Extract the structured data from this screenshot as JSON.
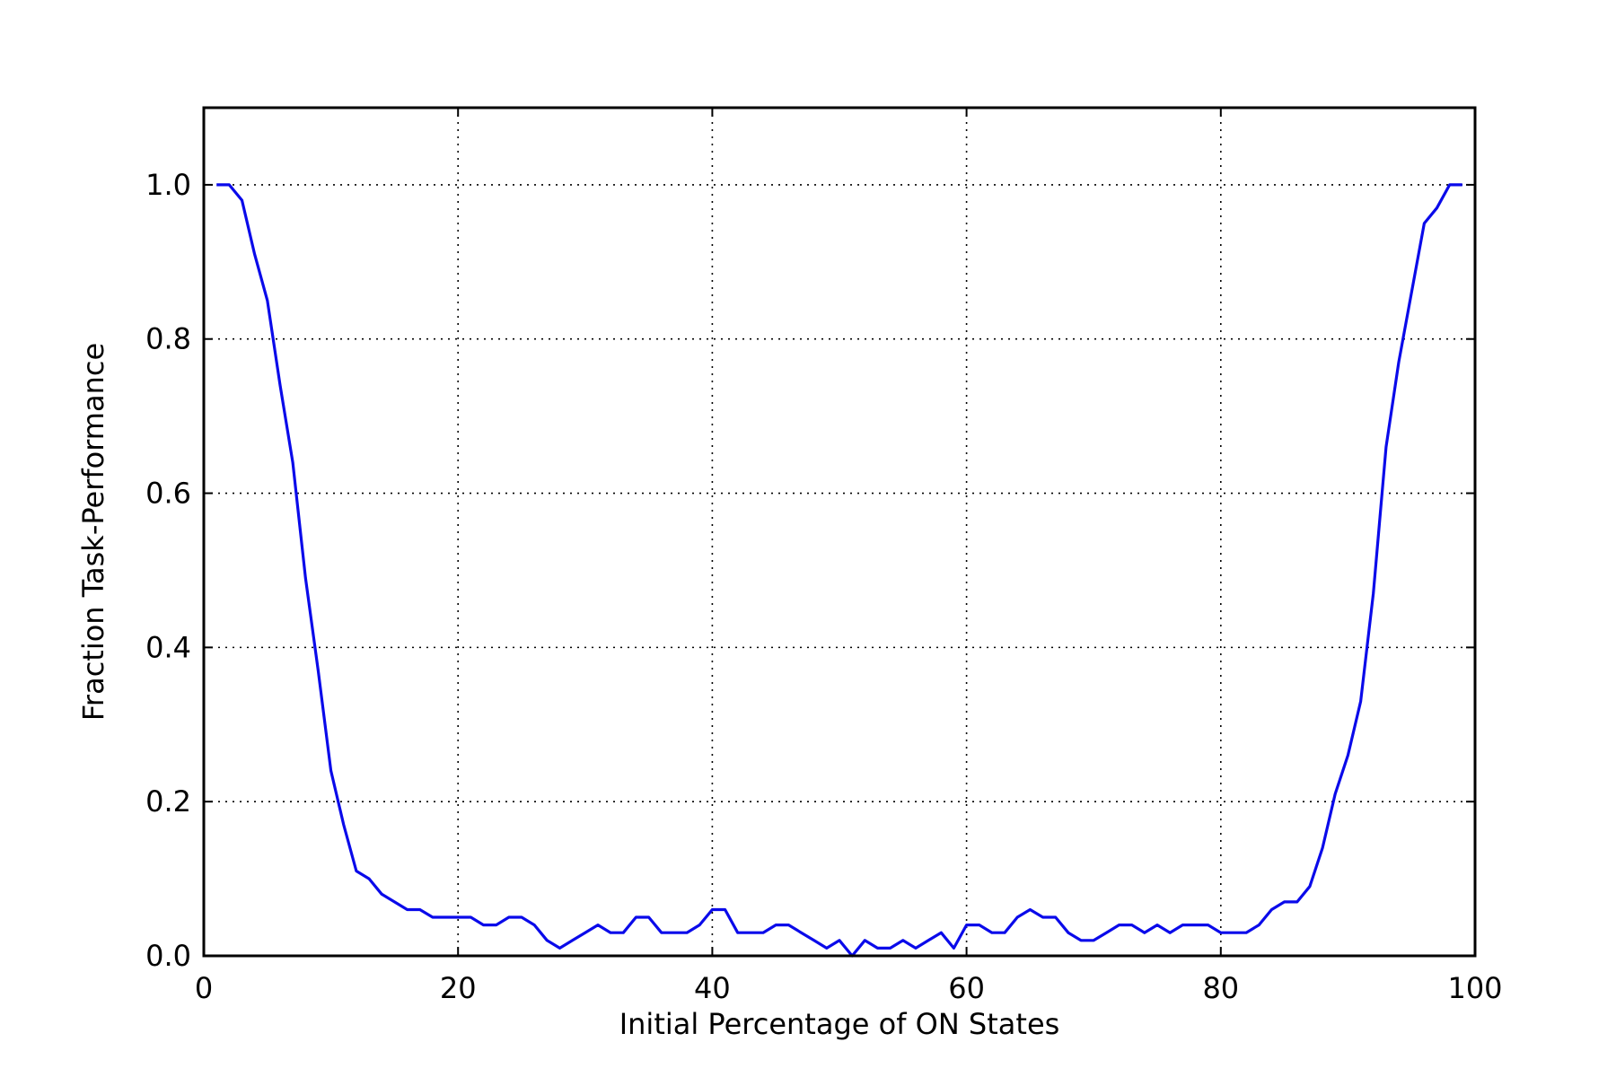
{
  "chart_data": {
    "type": "line",
    "title": "",
    "xlabel": "Initial Percentage of ON States",
    "ylabel": "Fraction Task-Performance",
    "xlim": [
      0,
      100
    ],
    "ylim": [
      0,
      1.1
    ],
    "xticks": [
      0,
      20,
      40,
      60,
      80,
      100
    ],
    "xtick_labels": [
      "0",
      "20",
      "40",
      "60",
      "80",
      "100"
    ],
    "yticks": [
      0.0,
      0.2,
      0.4,
      0.6,
      0.8,
      1.0
    ],
    "ytick_labels": [
      "0.0",
      "0.2",
      "0.4",
      "0.6",
      "0.8",
      "1.0"
    ],
    "grid": true,
    "series": [
      {
        "color": "#0a0aea",
        "x": [
          1,
          2,
          3,
          4,
          5,
          6,
          7,
          8,
          9,
          10,
          11,
          12,
          13,
          14,
          15,
          16,
          17,
          18,
          19,
          20,
          21,
          22,
          23,
          24,
          25,
          26,
          27,
          28,
          29,
          30,
          31,
          32,
          33,
          34,
          35,
          36,
          37,
          38,
          39,
          40,
          41,
          42,
          43,
          44,
          45,
          46,
          47,
          48,
          49,
          50,
          51,
          52,
          53,
          54,
          55,
          56,
          57,
          58,
          59,
          60,
          61,
          62,
          63,
          64,
          65,
          66,
          67,
          68,
          69,
          70,
          71,
          72,
          73,
          74,
          75,
          76,
          77,
          78,
          79,
          80,
          81,
          82,
          83,
          84,
          85,
          86,
          87,
          88,
          89,
          90,
          91,
          92,
          93,
          94,
          95,
          96,
          97,
          98,
          99
        ],
        "y": [
          1.0,
          1.0,
          0.98,
          0.91,
          0.85,
          0.74,
          0.64,
          0.49,
          0.37,
          0.24,
          0.17,
          0.11,
          0.1,
          0.08,
          0.07,
          0.06,
          0.06,
          0.05,
          0.05,
          0.05,
          0.05,
          0.04,
          0.04,
          0.05,
          0.05,
          0.04,
          0.02,
          0.01,
          0.02,
          0.03,
          0.04,
          0.03,
          0.03,
          0.05,
          0.05,
          0.03,
          0.03,
          0.03,
          0.04,
          0.06,
          0.06,
          0.03,
          0.03,
          0.03,
          0.04,
          0.04,
          0.03,
          0.02,
          0.01,
          0.02,
          0.0,
          0.02,
          0.01,
          0.01,
          0.02,
          0.01,
          0.02,
          0.03,
          0.01,
          0.04,
          0.04,
          0.03,
          0.03,
          0.05,
          0.06,
          0.05,
          0.05,
          0.03,
          0.02,
          0.02,
          0.03,
          0.04,
          0.04,
          0.03,
          0.04,
          0.03,
          0.04,
          0.04,
          0.04,
          0.03,
          0.03,
          0.03,
          0.04,
          0.06,
          0.07,
          0.07,
          0.09,
          0.14,
          0.21,
          0.26,
          0.33,
          0.47,
          0.66,
          0.77,
          0.86,
          0.95,
          0.97,
          1.0,
          1.0
        ]
      }
    ]
  }
}
